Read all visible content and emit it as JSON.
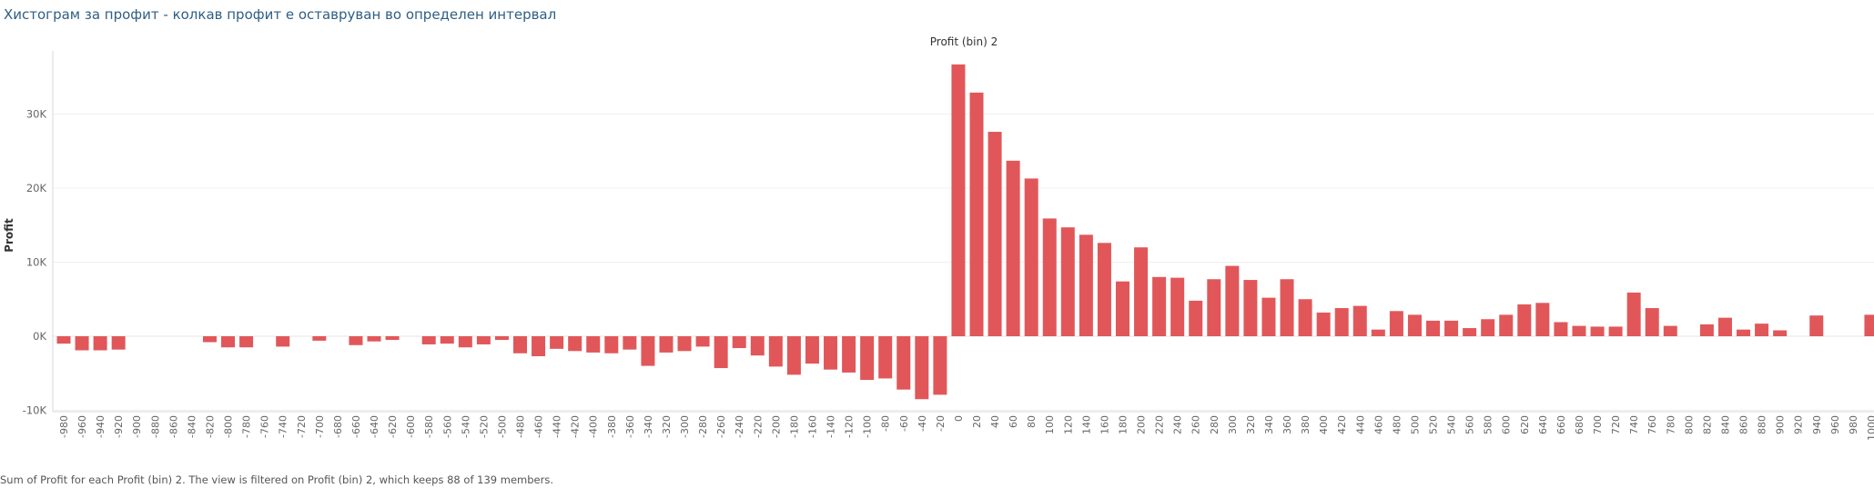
{
  "page": {
    "title": "Хистограм за профит - колкав профит е оставруван во определен интервал",
    "caption": "Sum of Profit for each Profit (bin) 2. The view is filtered on Profit (bin) 2, which keeps 88 of 139 members."
  },
  "chart_data": {
    "type": "bar",
    "title": "Profit (bin) 2",
    "ylabel": "Profit",
    "xlabel": "",
    "ylim": [
      -10000,
      37000
    ],
    "y_ticks": [
      -10000,
      0,
      10000,
      20000,
      30000
    ],
    "y_tick_labels": [
      "-10K",
      "0K",
      "10K",
      "20K",
      "30K"
    ],
    "grid": true,
    "bar_color": "#e15759",
    "categories": [
      -980,
      -960,
      -940,
      -920,
      -900,
      -880,
      -860,
      -840,
      -820,
      -800,
      -780,
      -760,
      -740,
      -720,
      -700,
      -680,
      -660,
      -640,
      -620,
      -600,
      -580,
      -560,
      -540,
      -520,
      -500,
      -480,
      -460,
      -440,
      -420,
      -400,
      -380,
      -360,
      -340,
      -320,
      -300,
      -280,
      -260,
      -240,
      -220,
      -200,
      -180,
      -160,
      -140,
      -120,
      -100,
      -80,
      -60,
      -40,
      -20,
      0,
      20,
      40,
      60,
      80,
      100,
      120,
      140,
      160,
      180,
      200,
      220,
      240,
      260,
      280,
      300,
      320,
      340,
      360,
      380,
      400,
      420,
      440,
      460,
      480,
      500,
      520,
      540,
      560,
      580,
      600,
      620,
      640,
      660,
      680,
      700,
      720,
      740,
      760,
      780,
      800,
      820,
      840,
      860,
      880,
      900,
      920,
      940,
      960,
      980,
      1000
    ],
    "values": [
      -1000,
      -1900,
      -1900,
      -1800,
      null,
      null,
      null,
      null,
      -800,
      -1500,
      -1500,
      null,
      -1400,
      null,
      -600,
      null,
      -1200,
      -700,
      -500,
      null,
      -1100,
      -1000,
      -1500,
      -1100,
      -500,
      -2300,
      -2700,
      -1700,
      -2000,
      -2200,
      -2300,
      -1800,
      -4000,
      -2200,
      -2000,
      -1400,
      -4300,
      -1600,
      -2600,
      -4100,
      -5200,
      -3700,
      -4500,
      -4900,
      -5900,
      -5700,
      -7200,
      -8500,
      -7900,
      36700,
      32900,
      27600,
      23700,
      21300,
      15900,
      14700,
      13700,
      12600,
      7400,
      12000,
      8000,
      7900,
      4800,
      7700,
      9500,
      7600,
      5200,
      7700,
      5000,
      3200,
      3800,
      4100,
      900,
      3400,
      2900,
      2100,
      2100,
      1100,
      2300,
      2900,
      4300,
      4500,
      1900,
      1400,
      1300,
      1300,
      5900,
      3800,
      1400,
      null,
      1600,
      2500,
      900,
      1700,
      800,
      null,
      2800,
      null,
      null,
      2900
    ]
  }
}
